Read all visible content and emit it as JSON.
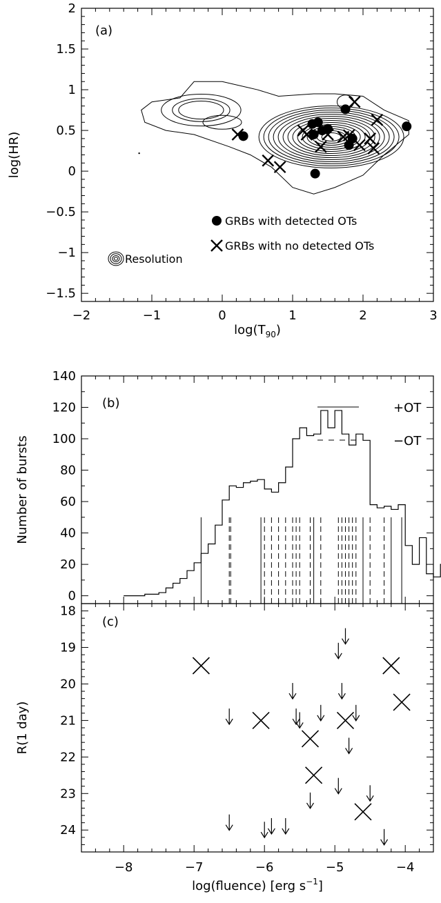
{
  "chart_data": [
    {
      "type": "scatter",
      "panel_label": "(a)",
      "xlabel": "log(T",
      "xlabel_sub": "90",
      "xlabel_end": ")",
      "ylabel": "log(HR)",
      "xlim": [
        -2,
        3
      ],
      "ylim": [
        -1.6,
        2
      ],
      "x_ticks": [
        -2,
        -1,
        0,
        1,
        2,
        3
      ],
      "x_tick_labels": [
        "−2",
        "−1",
        "0",
        "1",
        "2",
        "3"
      ],
      "y_ticks": [
        -1.5,
        -1,
        -0.5,
        0,
        0.5,
        1,
        1.5,
        2
      ],
      "y_tick_labels": [
        "−1.5",
        "−1",
        "−0.5",
        "0",
        "0.5",
        "1",
        "1.5",
        "2"
      ],
      "legend": [
        {
          "marker": "dot",
          "label": "GRBs with detected OTs"
        },
        {
          "marker": "cross",
          "label": "GRBs with no detected OTs"
        }
      ],
      "resolution_label": "Resolution",
      "contours": "density contours of the burst population",
      "series": [
        {
          "marker": "dot",
          "points": [
            [
              0.3,
              0.43
            ],
            [
              1.28,
              0.58
            ],
            [
              1.3,
              0.45
            ],
            [
              1.36,
              0.6
            ],
            [
              1.42,
              0.5
            ],
            [
              1.5,
              0.52
            ],
            [
              1.75,
              0.76
            ],
            [
              1.8,
              0.32
            ],
            [
              1.32,
              -0.03
            ],
            [
              2.62,
              0.55
            ],
            [
              1.85,
              0.4
            ]
          ]
        },
        {
          "marker": "cross",
          "points": [
            [
              0.22,
              0.45
            ],
            [
              0.65,
              0.13
            ],
            [
              0.82,
              0.05
            ],
            [
              1.15,
              0.5
            ],
            [
              1.2,
              0.45
            ],
            [
              1.4,
              0.3
            ],
            [
              1.5,
              0.45
            ],
            [
              1.72,
              0.42
            ],
            [
              1.8,
              0.44
            ],
            [
              1.88,
              0.85
            ],
            [
              1.95,
              0.32
            ],
            [
              2.1,
              0.4
            ],
            [
              2.15,
              0.28
            ],
            [
              2.2,
              0.63
            ]
          ]
        }
      ]
    },
    {
      "type": "bar",
      "panel_label": "(b)",
      "ylabel": "Number of bursts",
      "xlim": [
        -8.6,
        -3.6
      ],
      "ylim": [
        -5,
        140
      ],
      "y_ticks": [
        0,
        20,
        40,
        60,
        80,
        100,
        120,
        140
      ],
      "y_tick_labels": [
        "0",
        "20",
        "40",
        "60",
        "80",
        "100",
        "120",
        "140"
      ],
      "legend": [
        {
          "style": "solid",
          "label": "+OT"
        },
        {
          "style": "dashed",
          "label": "−OT"
        }
      ],
      "histogram": {
        "bin_width": 0.1,
        "bins_start": -8.0,
        "counts": [
          0,
          0,
          0,
          1,
          1,
          2,
          5,
          8,
          11,
          16,
          21,
          27,
          33,
          45,
          61,
          70,
          69,
          72,
          73,
          74,
          68,
          66,
          72,
          82,
          100,
          107,
          102,
          103,
          118,
          107,
          118,
          103,
          96,
          103,
          99,
          58,
          56,
          57,
          55,
          58,
          32,
          20,
          37,
          14,
          12,
          20,
          15,
          19,
          14,
          4,
          4,
          9,
          4,
          6,
          3,
          1,
          1,
          0
        ]
      },
      "solid_lines": [
        -6.9,
        -6.05,
        -5.3,
        -4.6,
        -4.2,
        -4.05
      ],
      "dashed_lines": [
        -6.5,
        -6.48,
        -6.0,
        -5.9,
        -5.8,
        -5.7,
        -5.6,
        -5.55,
        -5.5,
        -5.35,
        -5.2,
        -4.95,
        -4.9,
        -4.85,
        -4.8,
        -4.75,
        -4.7,
        -4.5,
        -4.3
      ]
    },
    {
      "type": "scatter",
      "panel_label": "(c)",
      "xlabel": "log(fluence) [erg s",
      "xlabel_sup": "−1",
      "xlabel_end": "]",
      "ylabel": "R(1 day)",
      "xlim": [
        -8.6,
        -3.6
      ],
      "ylim": [
        24.6,
        17.8
      ],
      "x_ticks": [
        -8,
        -7,
        -6,
        -5,
        -4
      ],
      "x_tick_labels": [
        "−8",
        "−7",
        "−6",
        "−5",
        "−4"
      ],
      "y_ticks": [
        18,
        19,
        20,
        21,
        22,
        23,
        24
      ],
      "y_tick_labels": [
        "18",
        "19",
        "20",
        "21",
        "22",
        "23",
        "24"
      ],
      "series": [
        {
          "marker": "cross",
          "points": [
            [
              -6.9,
              19.5
            ],
            [
              -6.05,
              21.0
            ],
            [
              -5.35,
              21.5
            ],
            [
              -5.3,
              22.5
            ],
            [
              -4.85,
              21.0
            ],
            [
              -4.6,
              23.5
            ],
            [
              -4.2,
              19.5
            ],
            [
              -4.05,
              20.5
            ]
          ]
        },
        {
          "marker": "upper-limit-arrow",
          "points": [
            [
              -6.5,
              20.9
            ],
            [
              -6.5,
              23.8
            ],
            [
              -6.0,
              24.0
            ],
            [
              -5.9,
              23.9
            ],
            [
              -5.7,
              23.9
            ],
            [
              -5.6,
              20.2
            ],
            [
              -5.55,
              20.9
            ],
            [
              -5.5,
              21.0
            ],
            [
              -5.35,
              23.2
            ],
            [
              -5.2,
              20.8
            ],
            [
              -4.95,
              19.1
            ],
            [
              -4.95,
              22.8
            ],
            [
              -4.9,
              20.2
            ],
            [
              -4.85,
              18.7
            ],
            [
              -4.8,
              21.7
            ],
            [
              -4.7,
              20.8
            ],
            [
              -4.5,
              23.0
            ],
            [
              -4.3,
              24.2
            ]
          ]
        }
      ]
    }
  ]
}
